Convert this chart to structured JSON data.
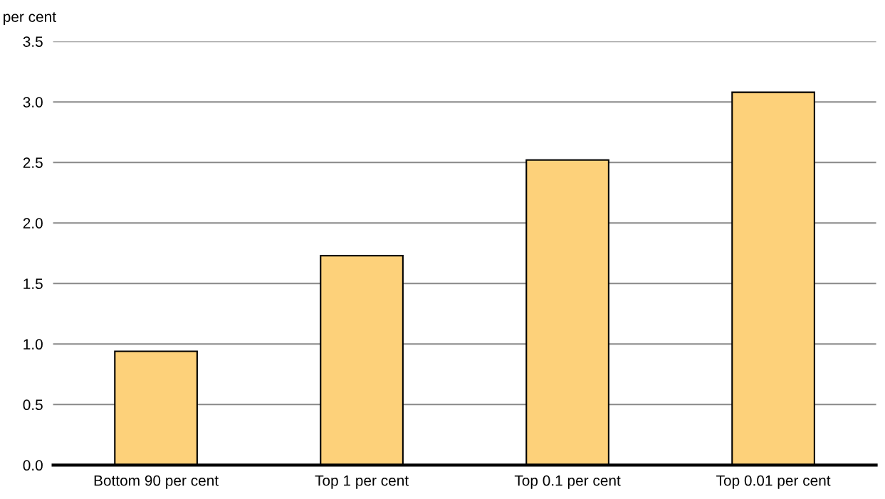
{
  "chart_data": {
    "type": "bar",
    "ylabel": "per cent",
    "categories": [
      "Bottom 90 per cent",
      "Top 1 per cent",
      "Top 0.1 per cent",
      "Top 0.01 per cent"
    ],
    "values": [
      0.94,
      1.73,
      2.52,
      3.08
    ],
    "color": "#fdd17a",
    "ylim": [
      0,
      3.5
    ],
    "yticks": [
      {
        "value": 0,
        "label": "0.0"
      },
      {
        "value": 0.5,
        "label": "0.5"
      },
      {
        "value": 1,
        "label": "1.0"
      },
      {
        "value": 1.5,
        "label": "1.5"
      },
      {
        "value": 2,
        "label": "2.0"
      },
      {
        "value": 2.5,
        "label": "2.5"
      },
      {
        "value": 3,
        "label": "3.0"
      },
      {
        "value": 3.5,
        "label": "3.5"
      }
    ],
    "grid": "y",
    "legend": false
  }
}
